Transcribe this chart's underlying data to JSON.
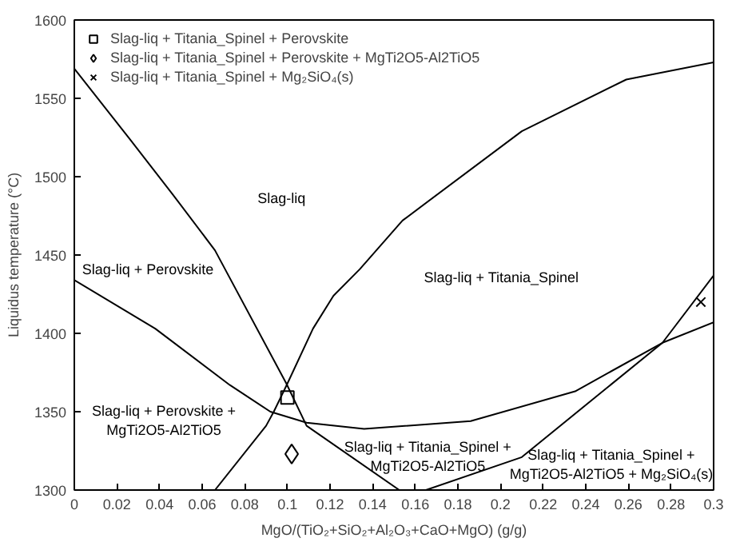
{
  "chart_data": {
    "type": "line",
    "xlabel": "MgO/(TiO₂+SiO₂+Al₂O₃+CaO+MgO) (g/g)",
    "ylabel": "Liquidus temperature (°C)",
    "xlim": [
      0,
      0.3
    ],
    "ylim": [
      1300,
      1600
    ],
    "xticks": [
      0,
      0.02,
      0.04,
      0.06,
      0.08,
      0.1,
      0.12,
      0.14,
      0.16,
      0.18,
      0.2,
      0.22,
      0.24,
      0.26,
      0.28,
      0.3
    ],
    "yticks": [
      1300,
      1350,
      1400,
      1450,
      1500,
      1550,
      1600
    ],
    "grid": false,
    "legend": "top left",
    "series": [
      {
        "color": "#000000",
        "x": [
          0,
          0.026,
          0.046,
          0.066,
          0.0995,
          0.109,
          0.1525
        ],
        "values": [
          1569,
          1524,
          1489,
          1453,
          1368,
          1341,
          1300
        ]
      },
      {
        "color": "#000000",
        "x": [
          0.066,
          0.09,
          0.0936,
          0.1,
          0.112,
          0.1216,
          0.134,
          0.154,
          0.21,
          0.259,
          0.3
        ],
        "values": [
          1300,
          1341,
          1350,
          1368,
          1403,
          1424,
          1441,
          1472,
          1529,
          1562,
          1573
        ]
      },
      {
        "color": "#000000",
        "x": [
          0,
          0.038,
          0.073,
          0.092,
          0.109,
          0.136,
          0.186,
          0.235,
          0.276,
          0.3
        ],
        "values": [
          1434,
          1403,
          1367,
          1350,
          1343,
          1339,
          1344,
          1363,
          1394,
          1407
        ]
      },
      {
        "color": "#000000",
        "x": [
          0.165,
          0.21,
          0.247,
          0.276,
          0.3
        ],
        "values": [
          1300,
          1321,
          1362,
          1394,
          1437
        ]
      },
      {
        "type": "scatter",
        "name": "Slag-liq + Titania_Spinel + Perovskite",
        "marker": "square",
        "color": "#000000",
        "x": [
          0.1
        ],
        "values": [
          1359
        ]
      },
      {
        "type": "scatter",
        "name": "Slag-liq + Titania_Spinel + Perovskite + MgTi2O5-Al2TiO5",
        "marker": "diamond",
        "color": "#000000",
        "x": [
          0.102
        ],
        "values": [
          1323
        ]
      },
      {
        "type": "scatter",
        "name": "Slag-liq + Titania_Spinel + Mg₂SiO₄(s)",
        "marker": "cross",
        "color": "#000000",
        "x": [
          0.294
        ],
        "values": [
          1420
        ]
      }
    ],
    "annotations": [
      "Slag-liq",
      "Slag-liq + Perovskite",
      "Slag-liq + Titania_Spinel",
      "Slag-liq + Perovskite +\nMgTi2O5-Al2TiO5",
      "Slag-liq + Titania_Spinel +\nMgTi2O5-Al2TiO5",
      "Slag-liq + Titania_Spinel +\nMgTi2O5-Al2TiO5 + Mg₂SiO₄(s)"
    ]
  }
}
